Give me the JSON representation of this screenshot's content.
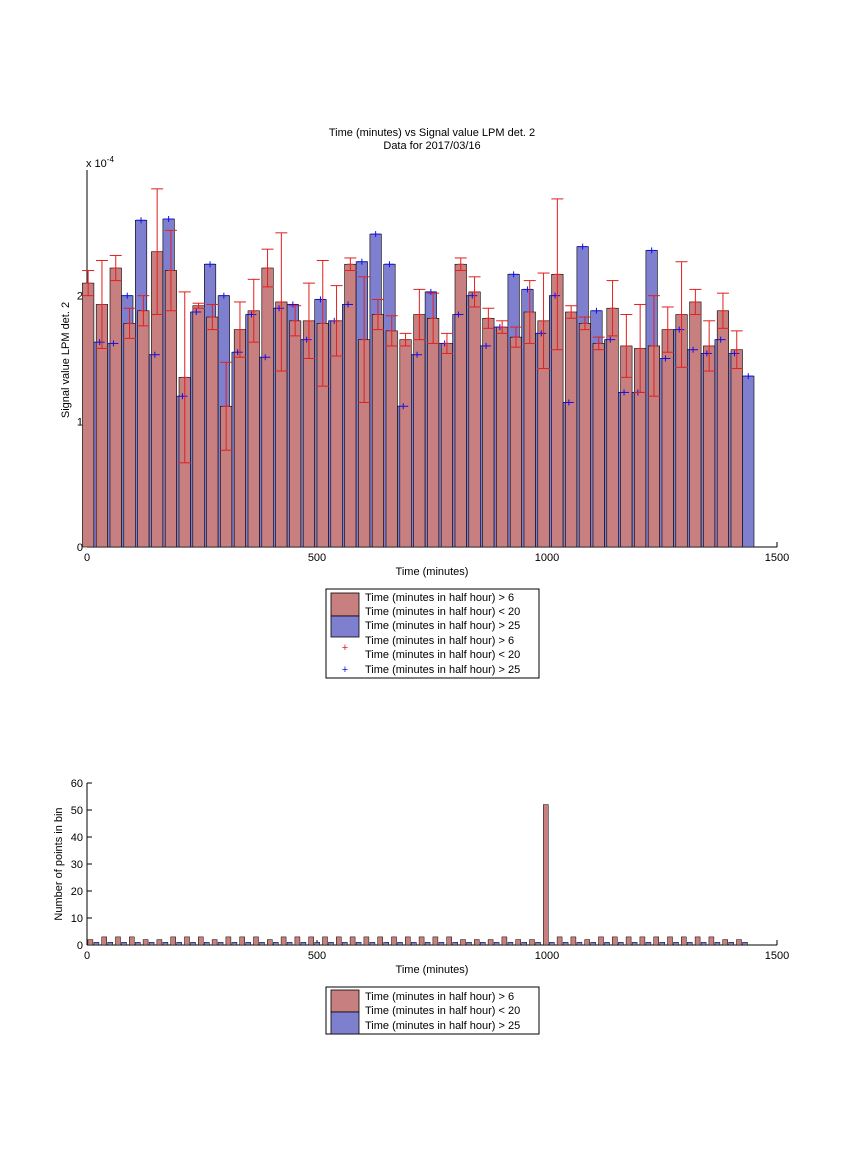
{
  "chart_data": [
    {
      "type": "bar",
      "title": "Time (minutes) vs Signal value LPM det. 2",
      "subtitle": "Data for 2017/03/16",
      "xlabel": "Time (minutes)",
      "ylabel": "Signal value LPM det. 2",
      "y_exponent_label": "x 10",
      "y_exponent_power": "-4",
      "xlim": [
        0,
        1500
      ],
      "ylim": [
        0,
        3
      ],
      "xticks": [
        "0",
        "500",
        "1000",
        "1500"
      ],
      "yticks": [
        "0",
        "1",
        "2"
      ],
      "grid": false,
      "legend_position": "below",
      "legend": [
        "Time (minutes in half hour) > 6",
        "Time (minutes in half hour) < 20",
        "Time (minutes in half hour) > 25",
        "Time (minutes in half hour) > 6",
        "Time (minutes in half hour) < 20",
        "Time (minutes in half hour) > 25"
      ],
      "colors": {
        "red_series": "#c87f7f",
        "blue_series": "#7f7fd0",
        "red_error": "#e02020",
        "blue_marker": "#1010e0"
      },
      "series": [
        {
          "x": [
            15,
            45,
            75,
            105,
            135,
            165,
            195,
            225,
            255,
            285,
            315,
            345,
            375,
            405,
            435,
            465,
            495,
            525,
            555,
            585,
            615,
            645,
            675,
            705,
            735,
            765,
            795,
            825,
            855,
            885,
            915,
            945,
            975,
            1005,
            1035,
            1065,
            1095,
            1125,
            1155,
            1185,
            1215,
            1245,
            1275,
            1305,
            1335,
            1365,
            1395,
            1425
          ],
          "values": [
            2.1,
            1.93,
            2.22,
            1.78,
            1.88,
            2.35,
            2.2,
            1.35,
            1.92,
            1.83,
            1.12,
            1.73,
            1.88,
            2.22,
            1.95,
            1.8,
            1.8,
            1.78,
            1.8,
            2.25,
            1.65,
            1.85,
            1.72,
            1.65,
            1.85,
            1.82,
            1.62,
            2.25,
            2.03,
            1.82,
            1.75,
            1.67,
            1.87,
            1.8,
            2.17,
            1.87,
            1.78,
            1.62,
            1.9,
            1.6,
            1.58,
            1.6,
            1.73,
            1.85,
            1.95,
            1.6,
            1.88,
            1.57
          ],
          "errors": [
            0.1,
            0.35,
            0.1,
            0.12,
            0.12,
            0.5,
            0.32,
            0.68,
            0.02,
            0.1,
            0.35,
            0.22,
            0.25,
            0.15,
            0.55,
            0.12,
            0.3,
            0.5,
            0.28,
            0.05,
            0.5,
            0.12,
            0.12,
            0.05,
            0.2,
            0.2,
            0.08,
            0.05,
            0.12,
            0.08,
            0.05,
            0.08,
            0.25,
            0.38,
            0.6,
            0.05,
            0.05,
            0.05,
            0.22,
            0.25,
            0.35,
            0.4,
            0.18,
            0.42,
            0.1,
            0.2,
            0.14,
            0.15
          ]
        },
        {
          "x": [
            15,
            45,
            75,
            105,
            135,
            165,
            195,
            225,
            255,
            285,
            315,
            345,
            375,
            405,
            435,
            465,
            495,
            525,
            555,
            585,
            615,
            645,
            675,
            705,
            735,
            765,
            795,
            825,
            855,
            885,
            915,
            945,
            975,
            1005,
            1035,
            1065,
            1095,
            1125,
            1155,
            1185,
            1215,
            1245,
            1275,
            1305,
            1335,
            1365,
            1395,
            1425
          ],
          "values": [
            1.63,
            1.62,
            2.0,
            2.6,
            1.53,
            2.61,
            1.2,
            1.87,
            2.25,
            2.0,
            1.55,
            1.85,
            1.51,
            1.9,
            1.93,
            1.65,
            1.97,
            1.8,
            1.93,
            2.27,
            2.49,
            2.25,
            1.12,
            1.53,
            2.03,
            1.62,
            1.85,
            2.0,
            1.6,
            1.75,
            2.17,
            2.05,
            1.7,
            2.0,
            1.15,
            2.39,
            1.88,
            1.65,
            1.23,
            1.23,
            2.36,
            1.5,
            1.73,
            1.57,
            1.54,
            1.65,
            1.54,
            1.36
          ]
        }
      ]
    },
    {
      "type": "bar",
      "xlabel": "Time (minutes)",
      "ylabel": "Number of points in bin",
      "xlim": [
        0,
        1500
      ],
      "ylim": [
        0,
        60
      ],
      "xticks": [
        "0",
        "500",
        "1000",
        "1500"
      ],
      "yticks": [
        "0",
        "10",
        "20",
        "30",
        "40",
        "50",
        "60"
      ],
      "grid": false,
      "legend_position": "below",
      "legend": [
        "Time (minutes in half hour) > 6",
        "Time (minutes in half hour) < 20",
        "Time (minutes in half hour) > 25"
      ],
      "series": [
        {
          "x": [
            15,
            45,
            75,
            105,
            135,
            165,
            195,
            225,
            255,
            285,
            315,
            345,
            375,
            405,
            435,
            465,
            495,
            525,
            555,
            585,
            615,
            645,
            675,
            705,
            735,
            765,
            795,
            825,
            855,
            885,
            915,
            945,
            975,
            1005,
            1035,
            1065,
            1095,
            1125,
            1155,
            1185,
            1215,
            1245,
            1275,
            1305,
            1335,
            1365,
            1395,
            1425
          ],
          "values": [
            2,
            3,
            3,
            3,
            2,
            2,
            3,
            3,
            3,
            2,
            3,
            3,
            3,
            2,
            3,
            3,
            3,
            3,
            3,
            3,
            3,
            3,
            3,
            3,
            3,
            3,
            3,
            2,
            2,
            2,
            3,
            2,
            2,
            52,
            3,
            3,
            2,
            3,
            3,
            3,
            3,
            3,
            3,
            3,
            3,
            3,
            2,
            2
          ]
        },
        {
          "x": [
            15,
            45,
            75,
            105,
            135,
            165,
            195,
            225,
            255,
            285,
            315,
            345,
            375,
            405,
            435,
            465,
            495,
            525,
            555,
            585,
            615,
            645,
            675,
            705,
            735,
            765,
            795,
            825,
            855,
            885,
            915,
            945,
            975,
            1005,
            1035,
            1065,
            1095,
            1125,
            1155,
            1185,
            1215,
            1245,
            1275,
            1305,
            1335,
            1365,
            1395,
            1425
          ],
          "values": [
            1,
            1,
            1,
            1,
            1,
            1,
            1,
            1,
            1,
            1,
            1,
            1,
            1,
            1,
            1,
            1,
            1,
            1,
            1,
            1,
            1,
            1,
            1,
            1,
            1,
            1,
            1,
            1,
            1,
            1,
            1,
            1,
            1,
            1,
            1,
            1,
            1,
            1,
            1,
            1,
            1,
            1,
            1,
            1,
            1,
            1,
            1,
            1
          ]
        }
      ]
    }
  ]
}
